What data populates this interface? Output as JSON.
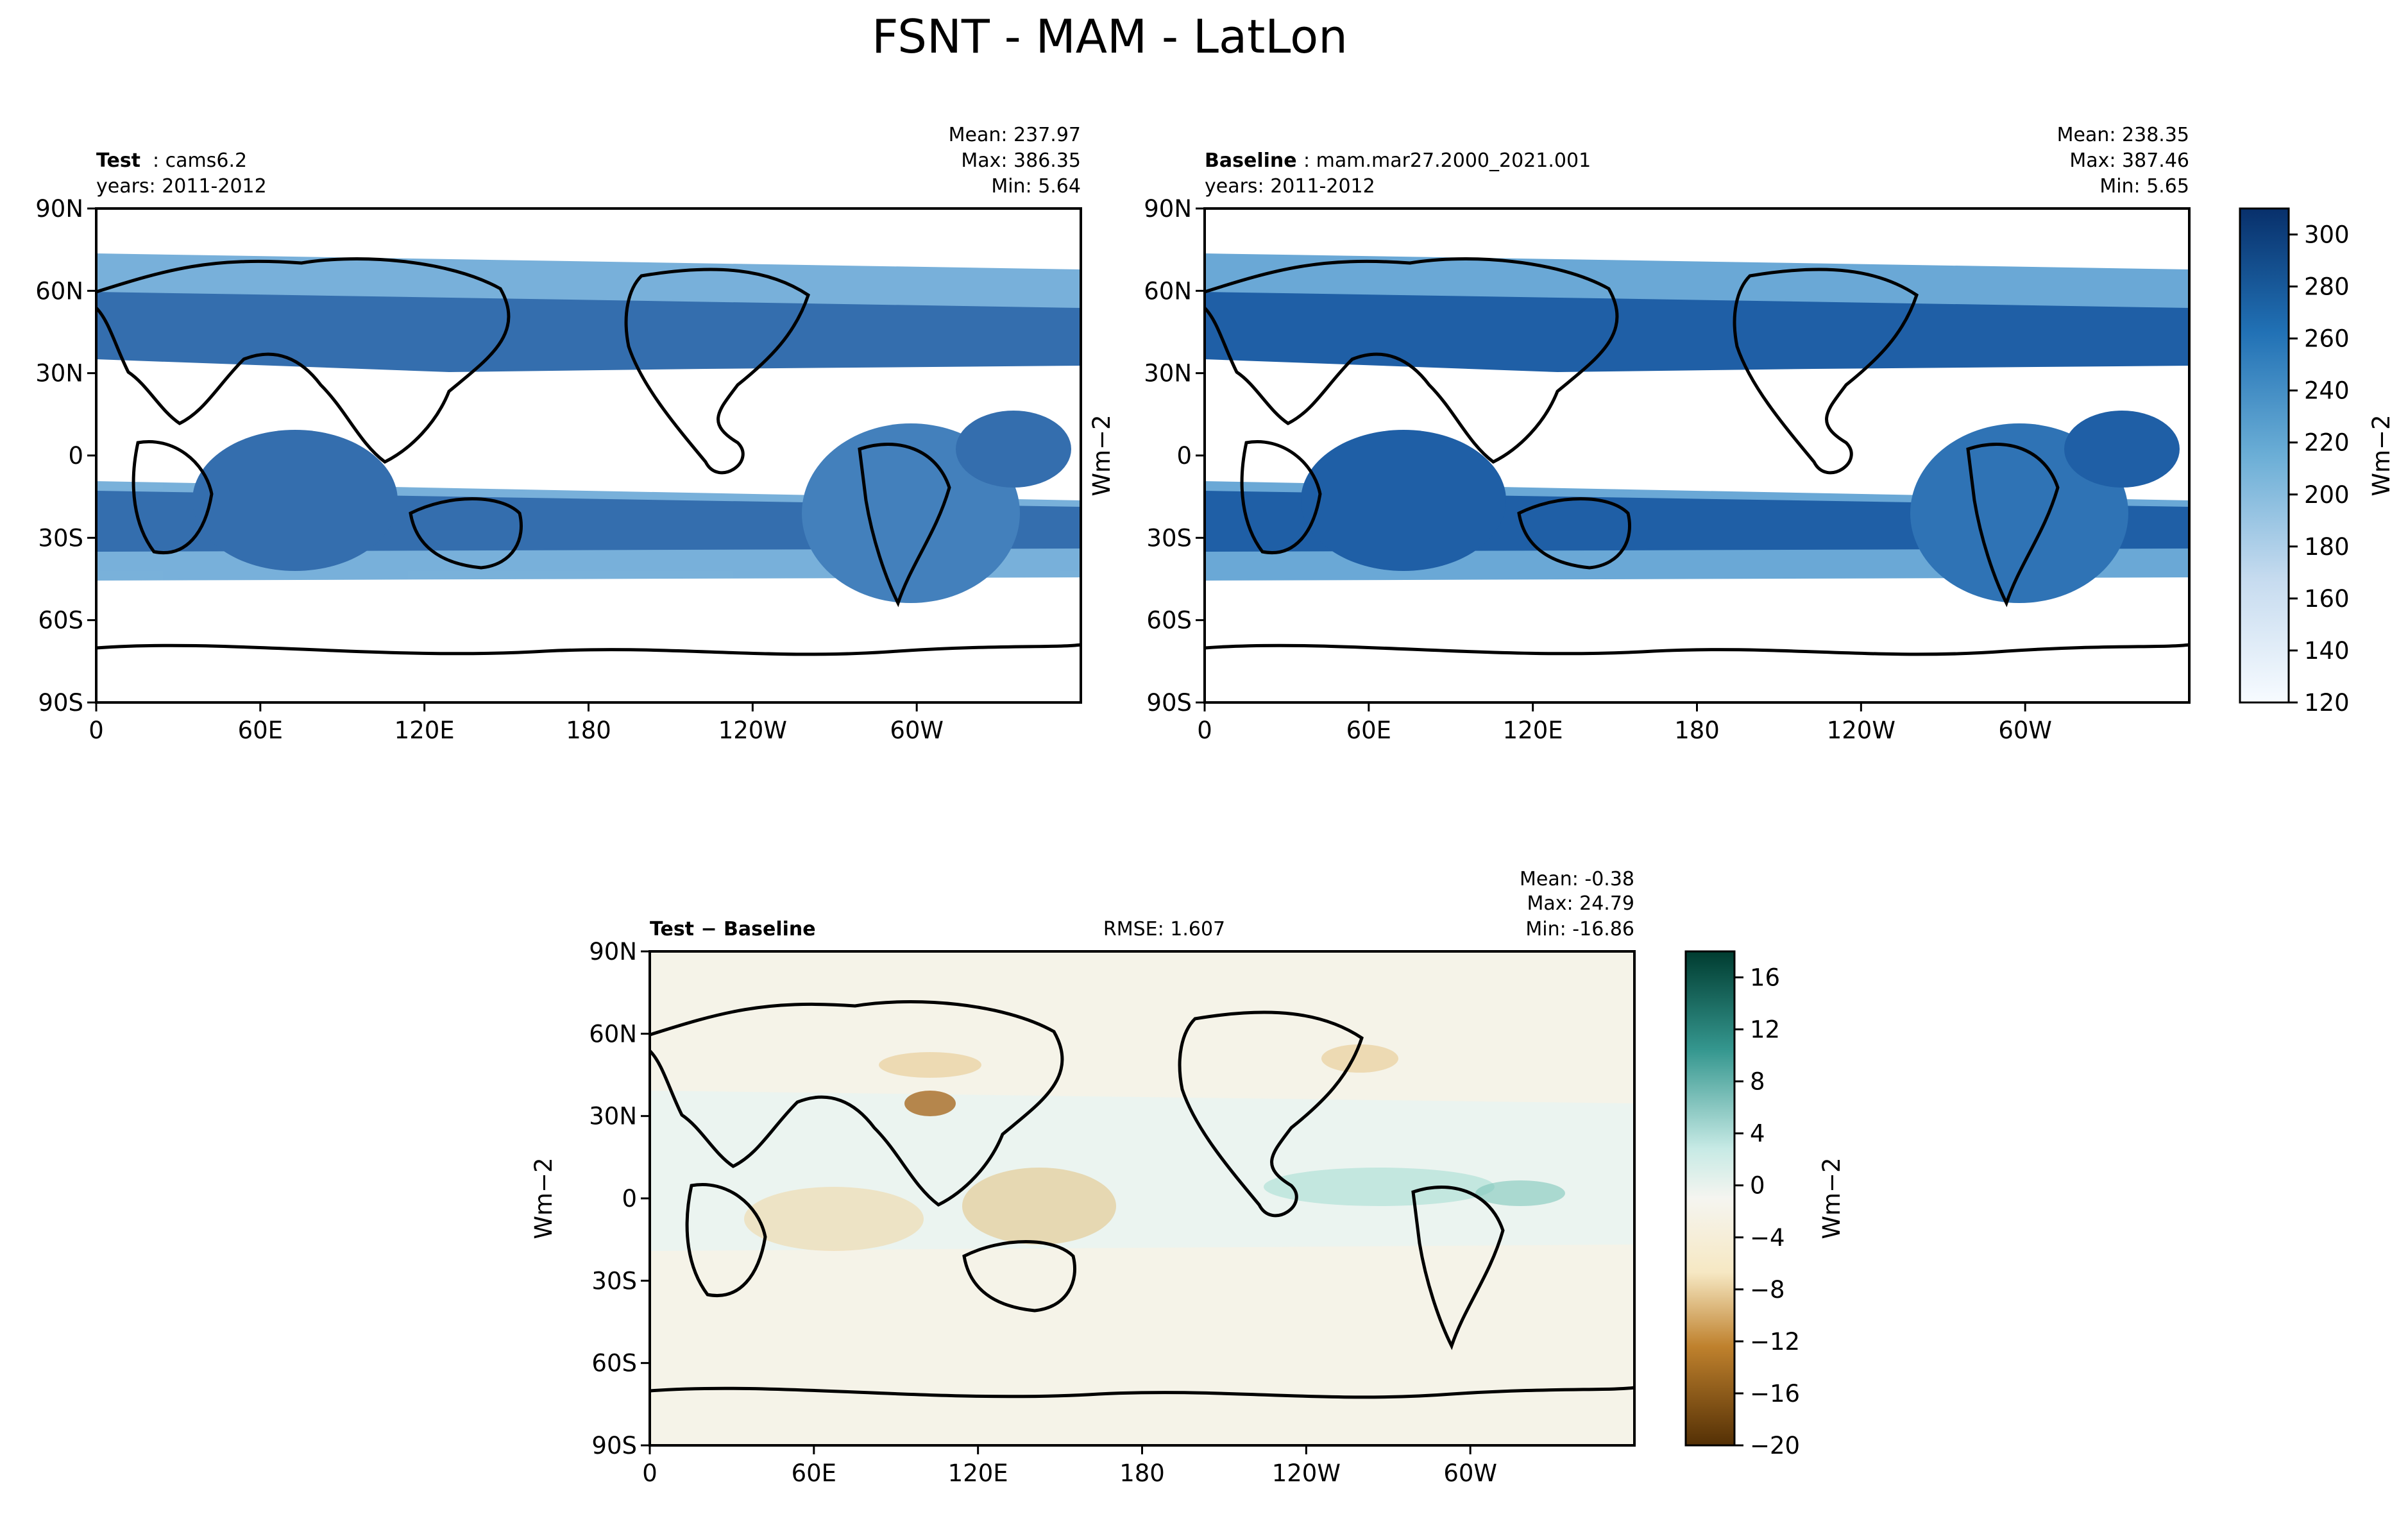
{
  "figure": {
    "title": "FSNT - MAM - LatLon"
  },
  "colors": {
    "seq_light": "#f7fbff",
    "seq_dark": "#08306b",
    "div_low": "#543005",
    "div_mid": "#f5f5f0",
    "div_high": "#003c30"
  },
  "chart_data": [
    {
      "type": "heatmap",
      "id": "test",
      "label_bold": "Test",
      "label_value": "cams6.2",
      "years": "years: 2011-2012",
      "stats": {
        "mean": "Mean: 237.97",
        "max": "Max: 386.35",
        "min": "Min:  5.64"
      },
      "x_ticks": [
        "0",
        "60E",
        "120E",
        "180",
        "120W",
        "60W"
      ],
      "y_ticks": [
        "90N",
        "60N",
        "30N",
        "0",
        "30S",
        "60S",
        "90S"
      ],
      "units": "Wm−2",
      "xlim": [
        0,
        360
      ],
      "ylim": [
        -90,
        90
      ]
    },
    {
      "type": "heatmap",
      "id": "baseline",
      "label_bold": "Baseline",
      "label_value": "mam.mar27.2000_2021.001",
      "years": "years: 2011-2012",
      "stats": {
        "mean": "Mean: 238.35",
        "max": "Max: 387.46",
        "min": "Min:  5.65"
      },
      "x_ticks": [
        "0",
        "60E",
        "120E",
        "180",
        "120W",
        "60W"
      ],
      "y_ticks": [
        "90N",
        "60N",
        "30N",
        "0",
        "30S",
        "60S",
        "90S"
      ],
      "colorbar": {
        "ticks": [
          "120",
          "140",
          "160",
          "180",
          "200",
          "220",
          "240",
          "260",
          "280",
          "300"
        ],
        "units": "Wm−2",
        "range": [
          120,
          310
        ]
      }
    },
    {
      "type": "heatmap",
      "id": "diff",
      "label": "Test − Baseline",
      "rmse": "RMSE: 1.607",
      "stats": {
        "mean": "Mean: -0.38",
        "max": "Max: 24.79",
        "min": "Min: -16.86"
      },
      "x_ticks": [
        "0",
        "60E",
        "120E",
        "180",
        "120W",
        "60W"
      ],
      "y_ticks": [
        "90N",
        "60N",
        "30N",
        "0",
        "30S",
        "60S",
        "90S"
      ],
      "units": "Wm−2",
      "colorbar": {
        "ticks": [
          "16",
          "12",
          "8",
          "4",
          "0",
          "−4",
          "−8",
          "−12",
          "−16",
          "−20"
        ],
        "units": "Wm−2",
        "range": [
          -20,
          18
        ]
      }
    }
  ]
}
